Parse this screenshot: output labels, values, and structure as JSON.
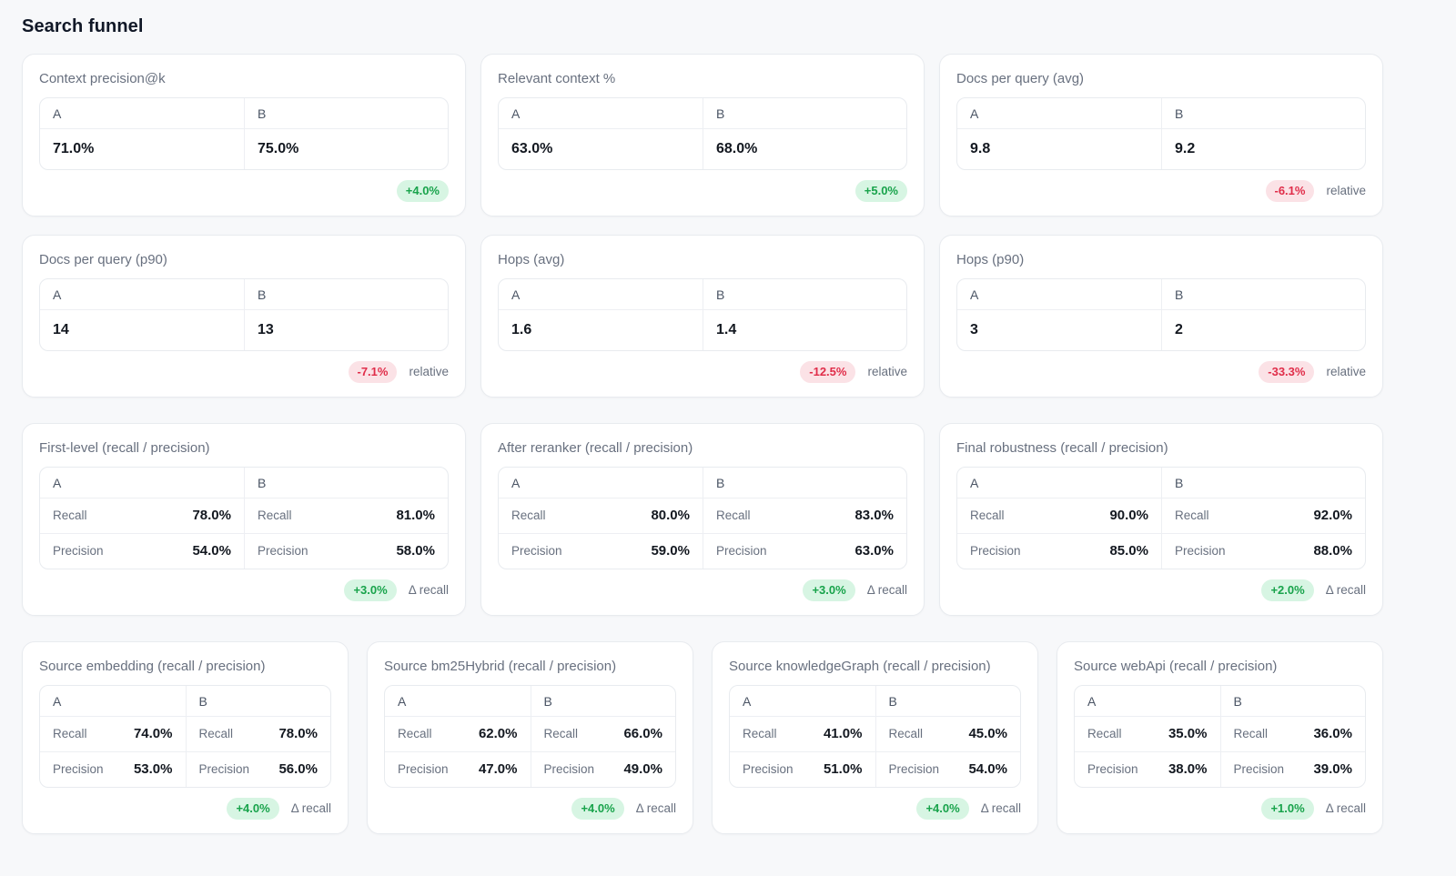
{
  "page": {
    "title": "Search funnel"
  },
  "labels": {
    "col_a": "A",
    "col_b": "B",
    "recall": "Recall",
    "precision": "Precision"
  },
  "colors": {
    "page_bg": "#f7f8fa",
    "card_bg": "#ffffff",
    "card_border": "#e8ebef",
    "divider": "#edeff3",
    "title_text": "#111827",
    "muted_text": "#68707f",
    "header_text": "#4b5565",
    "value_text": "#131820",
    "positive_bg": "#d7f5e3",
    "positive_text": "#18a34b",
    "negative_bg": "#fbe2e6",
    "negative_text": "#e02d49"
  },
  "sections": [
    {
      "name": "funnel-metrics",
      "layout": "grid-3",
      "card_type": "simple",
      "cards": [
        {
          "title": "Context precision@k",
          "a": "71.0%",
          "b": "75.0%",
          "delta": "+4.0%",
          "positive": true,
          "suffix": ""
        },
        {
          "title": "Relevant context %",
          "a": "63.0%",
          "b": "68.0%",
          "delta": "+5.0%",
          "positive": true,
          "suffix": ""
        },
        {
          "title": "Docs per query (avg)",
          "a": "9.8",
          "b": "9.2",
          "delta": "-6.1%",
          "positive": false,
          "suffix": "relative"
        },
        {
          "title": "Docs per query (p90)",
          "a": "14",
          "b": "13",
          "delta": "-7.1%",
          "positive": false,
          "suffix": "relative"
        },
        {
          "title": "Hops (avg)",
          "a": "1.6",
          "b": "1.4",
          "delta": "-12.5%",
          "positive": false,
          "suffix": "relative"
        },
        {
          "title": "Hops (p90)",
          "a": "3",
          "b": "2",
          "delta": "-33.3%",
          "positive": false,
          "suffix": "relative"
        }
      ]
    },
    {
      "name": "stage-recall-precision",
      "layout": "grid-3",
      "card_type": "recall_precision",
      "cards": [
        {
          "title": "First-level (recall / precision)",
          "a_recall": "78.0%",
          "a_precision": "54.0%",
          "b_recall": "81.0%",
          "b_precision": "58.0%",
          "delta": "+3.0%",
          "positive": true,
          "suffix": "Δ recall"
        },
        {
          "title": "After reranker (recall / precision)",
          "a_recall": "80.0%",
          "a_precision": "59.0%",
          "b_recall": "83.0%",
          "b_precision": "63.0%",
          "delta": "+3.0%",
          "positive": true,
          "suffix": "Δ recall"
        },
        {
          "title": "Final robustness (recall / precision)",
          "a_recall": "90.0%",
          "a_precision": "85.0%",
          "b_recall": "92.0%",
          "b_precision": "88.0%",
          "delta": "+2.0%",
          "positive": true,
          "suffix": "Δ recall"
        }
      ]
    },
    {
      "name": "source-recall-precision",
      "layout": "grid-4",
      "card_type": "recall_precision",
      "cards": [
        {
          "title": "Source embedding (recall / precision)",
          "a_recall": "74.0%",
          "a_precision": "53.0%",
          "b_recall": "78.0%",
          "b_precision": "56.0%",
          "delta": "+4.0%",
          "positive": true,
          "suffix": "Δ recall"
        },
        {
          "title": "Source bm25Hybrid (recall / precision)",
          "a_recall": "62.0%",
          "a_precision": "47.0%",
          "b_recall": "66.0%",
          "b_precision": "49.0%",
          "delta": "+4.0%",
          "positive": true,
          "suffix": "Δ recall"
        },
        {
          "title": "Source knowledgeGraph (recall / precision)",
          "a_recall": "41.0%",
          "a_precision": "51.0%",
          "b_recall": "45.0%",
          "b_precision": "54.0%",
          "delta": "+4.0%",
          "positive": true,
          "suffix": "Δ recall"
        },
        {
          "title": "Source webApi (recall / precision)",
          "a_recall": "35.0%",
          "a_precision": "38.0%",
          "b_recall": "36.0%",
          "b_precision": "39.0%",
          "delta": "+1.0%",
          "positive": true,
          "suffix": "Δ recall"
        }
      ]
    }
  ]
}
